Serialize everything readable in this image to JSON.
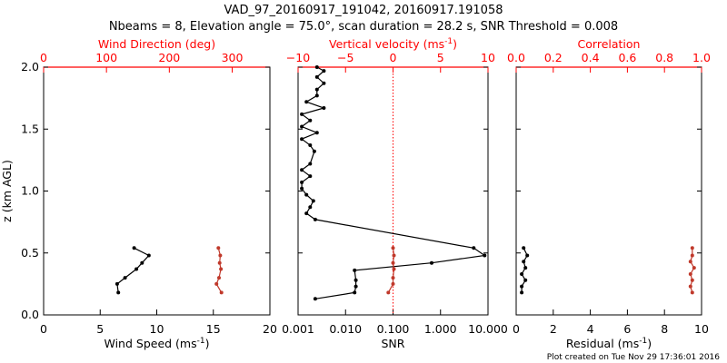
{
  "header": {
    "title_line1": "VAD_97_20160917_191042, 20160917.191058",
    "title_line2": "Nbeams = 8, Elevation angle = 75.0°, scan duration = 28.2 s, SNR Threshold = 0.008"
  },
  "footer": {
    "created": "Plot created on Tue Nov 29 17:36:01 2016"
  },
  "colors": {
    "primary": "#000000",
    "secondary": "#ff0000",
    "secondary_series": "#c0392b"
  },
  "chart_data": [
    {
      "type": "line",
      "panel": "wind",
      "ylabel": "z (km AGL)",
      "ylim": [
        0,
        2.0
      ],
      "yticks": [
        "0.0",
        "0.5",
        "1.0",
        "1.5",
        "2.0"
      ],
      "bottom_axis": {
        "label": "Wind Speed (ms",
        "sup": "-1",
        "label_end": ")",
        "range": [
          0,
          20
        ],
        "scale": "linear",
        "ticks": [
          "0",
          "5",
          "10",
          "15",
          "20"
        ]
      },
      "top_axis": {
        "label": "Wind Direction (deg)",
        "sup": "",
        "label_end": "",
        "range": [
          0,
          360
        ],
        "scale": "linear",
        "ticks": [
          "0",
          "100",
          "200",
          "300"
        ]
      },
      "series": [
        {
          "axis": "bottom",
          "color": "#000000",
          "x": [
            6.6,
            6.5,
            7.2,
            8.2,
            8.7,
            9.3,
            8.0
          ],
          "y": [
            0.18,
            0.25,
            0.3,
            0.37,
            0.42,
            0.48,
            0.54
          ]
        },
        {
          "axis": "top",
          "color": "#c0392b",
          "x": [
            283,
            275,
            279,
            282,
            280,
            281,
            278
          ],
          "y": [
            0.18,
            0.25,
            0.3,
            0.37,
            0.42,
            0.48,
            0.54
          ]
        }
      ]
    },
    {
      "type": "line",
      "panel": "snr",
      "ylim": [
        0,
        2.0
      ],
      "bottom_axis": {
        "label": "SNR",
        "sup": "",
        "label_end": "",
        "range": [
          0.001,
          10
        ],
        "scale": "log",
        "ticks": [
          "0.001",
          "0.010",
          "0.100",
          "1.000",
          "10.000"
        ]
      },
      "top_axis": {
        "label": "Vertical velocity (ms",
        "sup": "-1",
        "label_end": ")",
        "range": [
          -10,
          10
        ],
        "scale": "linear",
        "ticks": [
          "−10",
          "−5",
          "0",
          "5",
          "10"
        ]
      },
      "vline_top_value": 0,
      "series": [
        {
          "axis": "bottom",
          "color": "#000000",
          "x": [
            0.0023,
            0.0155,
            0.0165,
            0.0165,
            0.0155,
            0.65,
            8.5,
            5.0,
            0.0023,
            0.0015,
            0.0018,
            0.0021,
            0.0015,
            0.0012,
            0.0012,
            0.0018,
            0.0012,
            0.0018,
            0.0022,
            0.0018,
            0.0012,
            0.0025,
            0.0012,
            0.0018,
            0.0012,
            0.0035,
            0.0015,
            0.0025,
            0.0025,
            0.0035,
            0.0025,
            0.0035,
            0.0025
          ],
          "y": [
            0.13,
            0.18,
            0.23,
            0.28,
            0.36,
            0.42,
            0.48,
            0.54,
            0.77,
            0.82,
            0.87,
            0.92,
            0.97,
            1.02,
            1.07,
            1.12,
            1.17,
            1.22,
            1.32,
            1.37,
            1.42,
            1.47,
            1.52,
            1.57,
            1.62,
            1.67,
            1.72,
            1.77,
            1.82,
            1.87,
            1.92,
            1.97,
            2.0
          ]
        },
        {
          "axis": "top",
          "color": "#c0392b",
          "x": [
            -0.5,
            0.0,
            0.0,
            0.1,
            0.0,
            0.1,
            0.0
          ],
          "y": [
            0.18,
            0.25,
            0.3,
            0.37,
            0.42,
            0.48,
            0.54
          ]
        }
      ]
    },
    {
      "type": "line",
      "panel": "residual",
      "ylim": [
        0,
        2.0
      ],
      "bottom_axis": {
        "label": "Residual (ms",
        "sup": "-1",
        "label_end": ")",
        "range": [
          0,
          10
        ],
        "scale": "linear",
        "ticks": [
          "0",
          "2",
          "4",
          "6",
          "8",
          "10"
        ]
      },
      "top_axis": {
        "label": "Correlation",
        "sup": "",
        "label_end": "",
        "range": [
          0,
          1.0
        ],
        "scale": "linear",
        "ticks": [
          "0.0",
          "0.2",
          "0.4",
          "0.6",
          "0.8",
          "1.0"
        ]
      },
      "series": [
        {
          "axis": "bottom",
          "color": "#000000",
          "x": [
            0.3,
            0.3,
            0.5,
            0.3,
            0.5,
            0.4,
            0.6,
            0.4
          ],
          "y": [
            0.18,
            0.23,
            0.28,
            0.33,
            0.38,
            0.43,
            0.48,
            0.54
          ]
        },
        {
          "axis": "top",
          "color": "#c0392b",
          "x": [
            0.95,
            0.94,
            0.95,
            0.94,
            0.96,
            0.94,
            0.95,
            0.95
          ],
          "y": [
            0.18,
            0.23,
            0.28,
            0.33,
            0.38,
            0.43,
            0.48,
            0.54
          ]
        }
      ]
    }
  ]
}
